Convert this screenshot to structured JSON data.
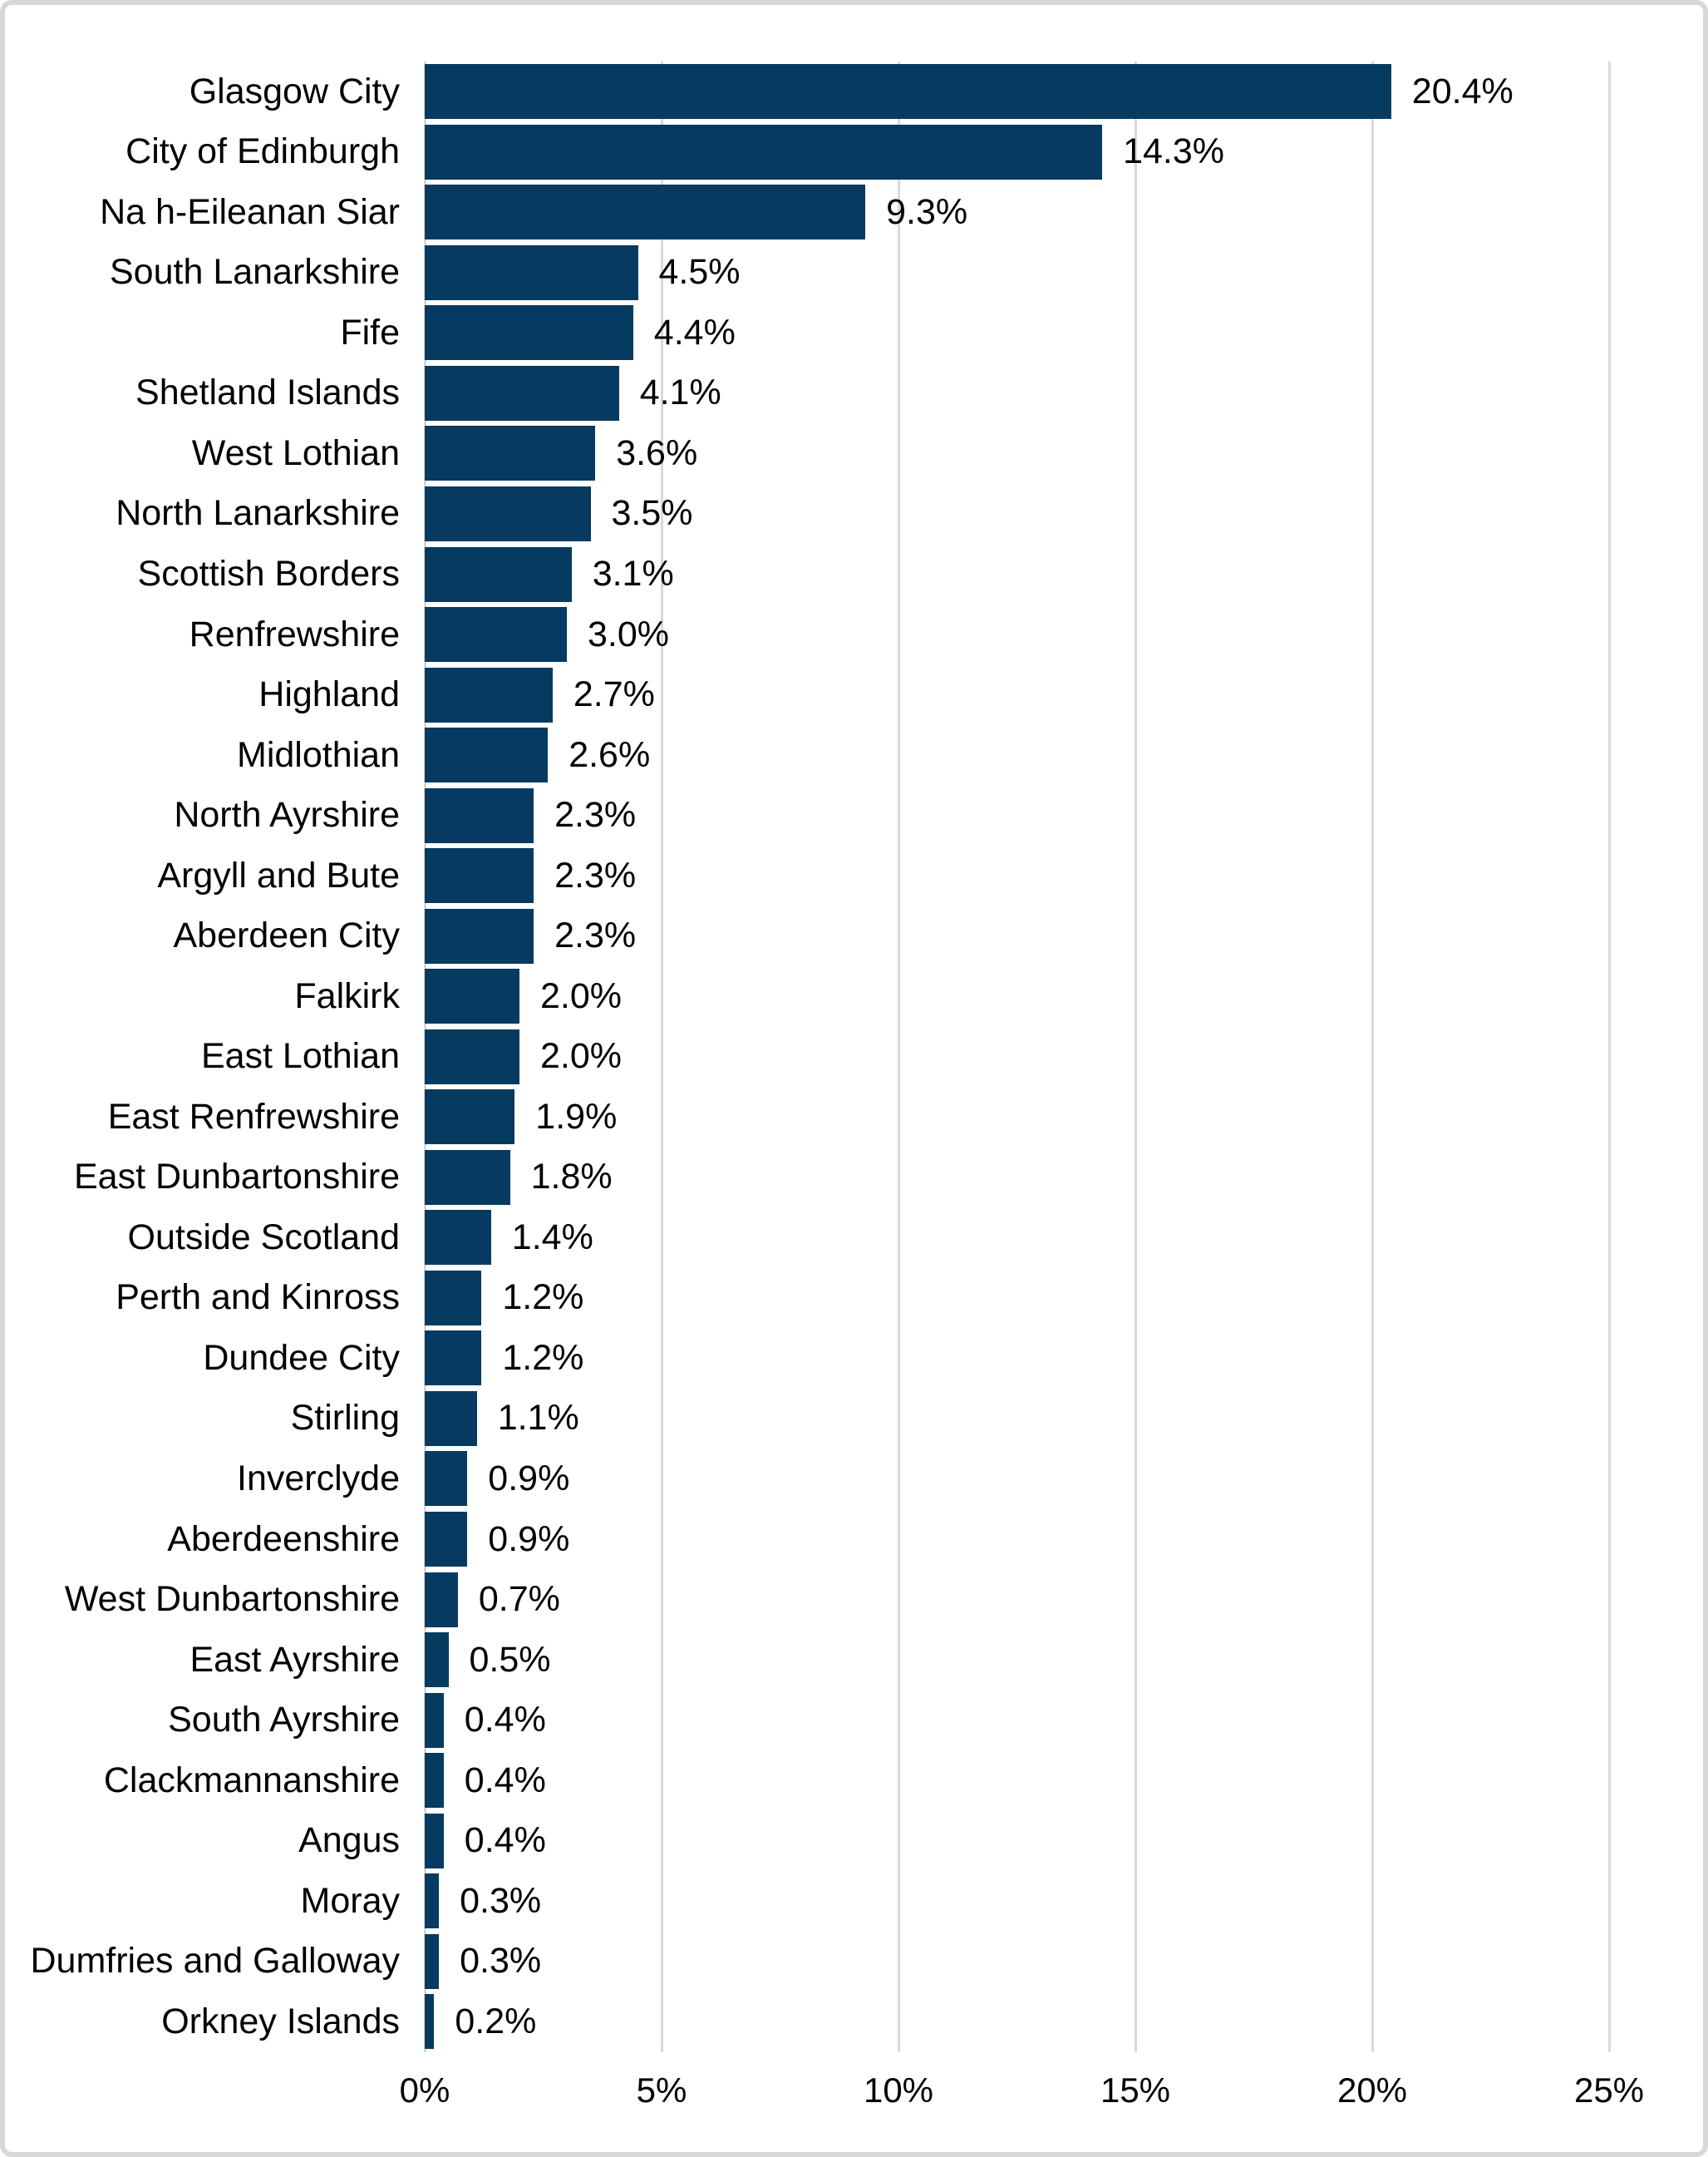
{
  "chart_data": {
    "type": "bar",
    "orientation": "horizontal",
    "title": "",
    "xlabel": "",
    "ylabel": "",
    "xlim": [
      0,
      25
    ],
    "grid": "vertical",
    "legend": "none",
    "bar_color": "#063a60",
    "gridline_color": "#d9d9d9",
    "text_color": "#000000",
    "background_color": "#ffffff",
    "frame_border_color": "#d8d8d8",
    "categories": [
      "Glasgow City",
      "City of Edinburgh",
      "Na h-Eileanan Siar",
      "South Lanarkshire",
      "Fife",
      "Shetland Islands",
      "West Lothian",
      "North Lanarkshire",
      "Scottish Borders",
      "Renfrewshire",
      "Highland",
      "Midlothian",
      "North Ayrshire",
      "Argyll and Bute",
      "Aberdeen City",
      "Falkirk",
      "East Lothian",
      "East Renfrewshire",
      "East Dunbartonshire",
      "Outside Scotland",
      "Perth and Kinross",
      "Dundee City",
      "Stirling",
      "Inverclyde",
      "Aberdeenshire",
      "West Dunbartonshire",
      "East Ayrshire",
      "South Ayrshire",
      "Clackmannanshire",
      "Angus",
      "Moray",
      "Dumfries and Galloway",
      "Orkney Islands"
    ],
    "values": [
      20.4,
      14.3,
      9.3,
      4.5,
      4.4,
      4.1,
      3.6,
      3.5,
      3.1,
      3.0,
      2.7,
      2.6,
      2.3,
      2.3,
      2.3,
      2.0,
      2.0,
      1.9,
      1.8,
      1.4,
      1.2,
      1.2,
      1.1,
      0.9,
      0.9,
      0.7,
      0.5,
      0.4,
      0.4,
      0.4,
      0.3,
      0.3,
      0.2
    ],
    "data_labels": [
      "20.4%",
      "14.3%",
      "9.3%",
      "4.5%",
      "4.4%",
      "4.1%",
      "3.6%",
      "3.5%",
      "3.1%",
      "3.0%",
      "2.7%",
      "2.6%",
      "2.3%",
      "2.3%",
      "2.3%",
      "2.0%",
      "2.0%",
      "1.9%",
      "1.8%",
      "1.4%",
      "1.2%",
      "1.2%",
      "1.1%",
      "0.9%",
      "0.9%",
      "0.7%",
      "0.5%",
      "0.4%",
      "0.4%",
      "0.4%",
      "0.3%",
      "0.3%",
      "0.2%"
    ],
    "x_ticks": [
      "0%",
      "5%",
      "10%",
      "15%",
      "20%",
      "25%"
    ],
    "x_tick_values": [
      0,
      5,
      10,
      15,
      20,
      25
    ]
  }
}
